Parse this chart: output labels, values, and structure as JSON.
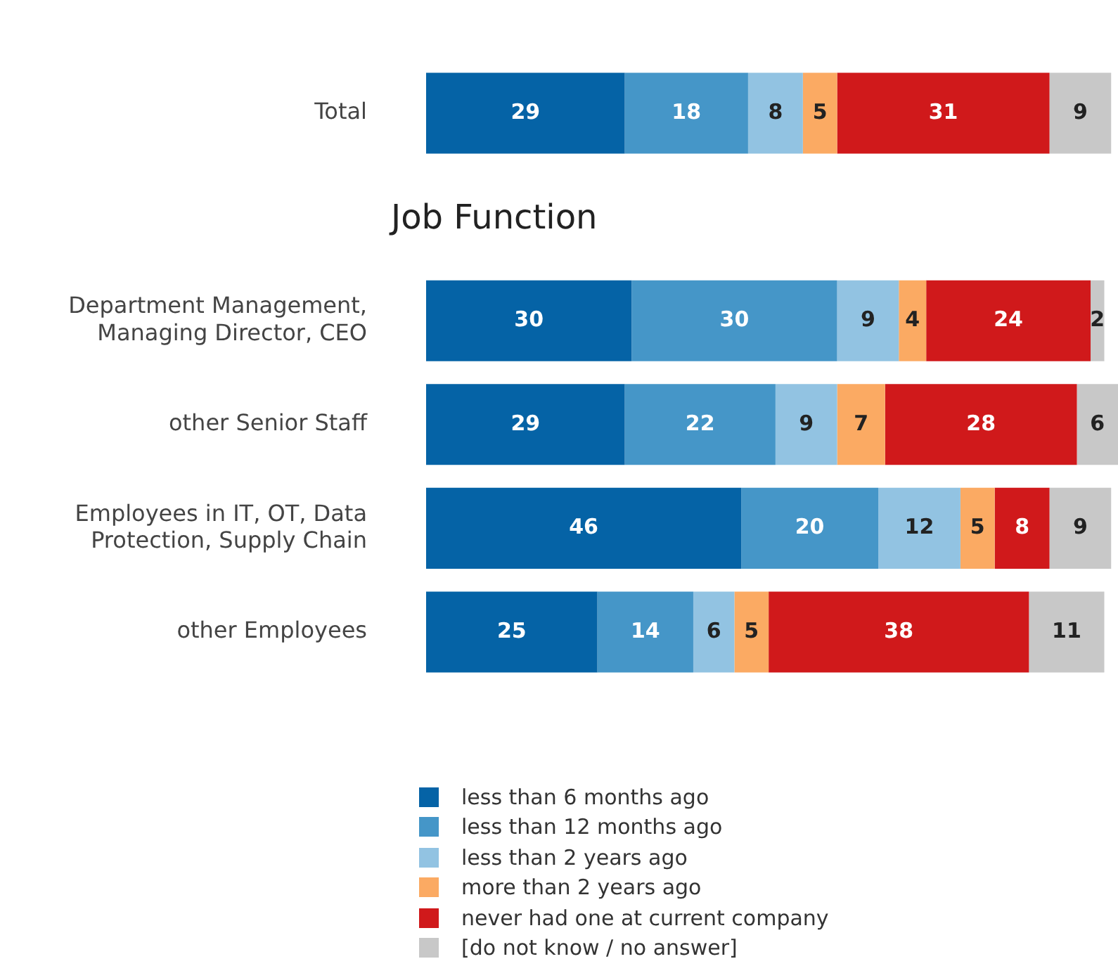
{
  "chart_data": {
    "type": "bar",
    "orientation": "horizontal",
    "stacked": true,
    "data_labels": true,
    "legend": "bottom left",
    "categories": [
      "Total",
      null,
      "Department Management, Managing Director, CEO",
      "other Senior Staff",
      "Employees in IT, OT, Data Protection, Supply Chain",
      "other Employees"
    ],
    "xlim": [
      0,
      101
    ],
    "annotations": [
      "Job Function"
    ],
    "series": [
      {
        "name": "less than 6 months ago",
        "color": "#0563a6",
        "values": [
          29,
          null,
          30,
          29,
          46,
          25
        ]
      },
      {
        "name": "less than 12 months ago",
        "color": "#4596c8",
        "values": [
          18,
          null,
          30,
          22,
          20,
          14
        ]
      },
      {
        "name": "less than 2 years ago",
        "color": "#92c3e2",
        "values": [
          8,
          null,
          9,
          9,
          12,
          6
        ]
      },
      {
        "name": "more than 2 years ago",
        "color": "#fbaa63",
        "values": [
          5,
          null,
          4,
          7,
          5,
          5
        ]
      },
      {
        "name": "never had one at current company",
        "color": "#d0191b",
        "values": [
          31,
          null,
          24,
          28,
          8,
          38
        ]
      },
      {
        "name": "[do not know / no answer]",
        "color": "#c8c8c8",
        "values": [
          9,
          null,
          2,
          6,
          9,
          11
        ]
      }
    ]
  }
}
